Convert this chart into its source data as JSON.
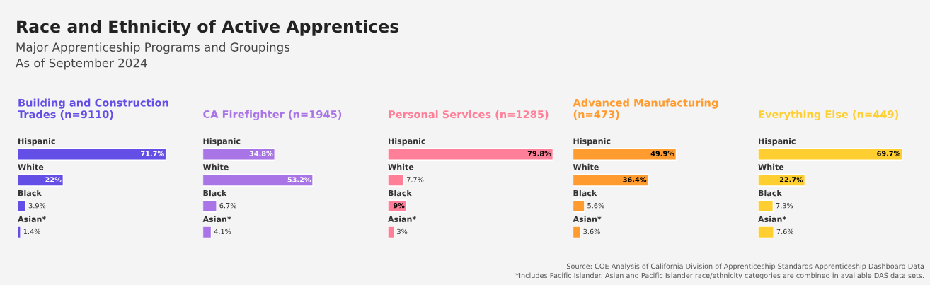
{
  "chart_data": [
    {
      "type": "other",
      "title": "Race and Ethnicity of Active Apprentices",
      "subtitle": "Major Apprenticeship Programs and Groupings\nAs of September 2024",
      "annotations": [
        "Source: COE Analysis of California Division of Apprenticeship Standards Apprenticeship Dashboard Data",
        "*Includes Pacific Islander. Asian and Pacific Islander race/ethnicity categories are combined in available DAS data sets."
      ]
    },
    {
      "type": "bar",
      "orientation": "horizontal",
      "title": "Building and Construction Trades (n=9110)",
      "categories": [
        "Hispanic",
        "White",
        "Black",
        "Asian*"
      ],
      "values": [
        71.7,
        22,
        3.9,
        1.4
      ],
      "value_labels": [
        "71.7%",
        "22%",
        "3.9%",
        "1.4%"
      ],
      "color": "#634ee6"
    },
    {
      "type": "bar",
      "orientation": "horizontal",
      "title": "CA Firefighter (n=1945)",
      "categories": [
        "Hispanic",
        "White",
        "Black",
        "Asian*"
      ],
      "values": [
        34.8,
        53.2,
        6.7,
        4.1
      ],
      "value_labels": [
        "34.8%",
        "53.2%",
        "6.7%",
        "4.1%"
      ],
      "color": "#a874e6"
    },
    {
      "type": "bar",
      "orientation": "horizontal",
      "title": "Personal Services (n=1285)",
      "categories": [
        "Hispanic",
        "White",
        "Black",
        "Asian*"
      ],
      "values": [
        79.8,
        7.7,
        9,
        3
      ],
      "value_labels": [
        "79.8%",
        "7.7%",
        "9%",
        "3%"
      ],
      "color": "#ff7f98"
    },
    {
      "type": "bar",
      "orientation": "horizontal",
      "title": "Advanced Manufacturing (n=473)",
      "categories": [
        "Hispanic",
        "White",
        "Black",
        "Asian*"
      ],
      "values": [
        49.9,
        36.4,
        5.6,
        3.6
      ],
      "value_labels": [
        "49.9%",
        "36.4%",
        "5.6%",
        "3.6%"
      ],
      "color": "#ff9b2f"
    },
    {
      "type": "bar",
      "orientation": "horizontal",
      "title": "Everything Else (n=449)",
      "categories": [
        "Hispanic",
        "White",
        "Black",
        "Asian*"
      ],
      "values": [
        69.7,
        22.7,
        7.3,
        7.6
      ],
      "value_labels": [
        "69.7%",
        "22.7%",
        "7.3%",
        "7.6%"
      ],
      "color": "#ffcf31"
    }
  ]
}
